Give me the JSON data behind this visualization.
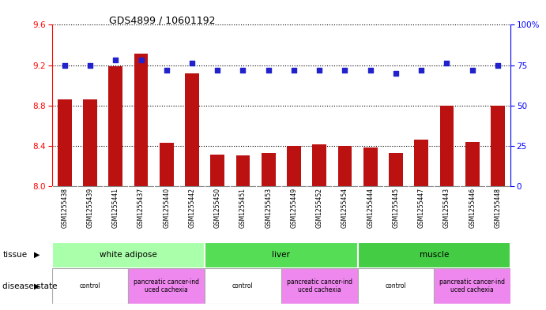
{
  "title": "GDS4899 / 10601192",
  "samples": [
    "GSM1255438",
    "GSM1255439",
    "GSM1255441",
    "GSM1255437",
    "GSM1255440",
    "GSM1255442",
    "GSM1255450",
    "GSM1255451",
    "GSM1255453",
    "GSM1255449",
    "GSM1255452",
    "GSM1255454",
    "GSM1255444",
    "GSM1255445",
    "GSM1255447",
    "GSM1255443",
    "GSM1255446",
    "GSM1255448"
  ],
  "transformed_count": [
    8.86,
    8.86,
    9.19,
    9.31,
    8.43,
    9.12,
    8.31,
    8.3,
    8.33,
    8.4,
    8.41,
    8.4,
    8.38,
    8.33,
    8.46,
    8.8,
    8.44,
    8.8
  ],
  "percentile_rank": [
    75,
    75,
    78,
    78,
    72,
    76,
    72,
    72,
    72,
    72,
    72,
    72,
    72,
    70,
    72,
    76,
    72,
    75
  ],
  "ylim_left": [
    8.0,
    9.6
  ],
  "ylim_right": [
    0,
    100
  ],
  "yticks_left": [
    8.0,
    8.4,
    8.8,
    9.2,
    9.6
  ],
  "yticks_right": [
    0,
    25,
    50,
    75,
    100
  ],
  "bar_color": "#bb1111",
  "dot_color": "#2222cc",
  "tissue_groups": [
    {
      "label": "white adipose",
      "start": 0,
      "end": 6,
      "color": "#99ee99"
    },
    {
      "label": "liver",
      "start": 6,
      "end": 12,
      "color": "#55dd55"
    },
    {
      "label": "muscle",
      "start": 12,
      "end": 18,
      "color": "#44cc44"
    }
  ],
  "disease_groups": [
    {
      "label": "control",
      "start": 0,
      "end": 3,
      "is_cancer": false
    },
    {
      "label": "pancreatic cancer-ind\nuced cachexia",
      "start": 3,
      "end": 6,
      "is_cancer": true
    },
    {
      "label": "control",
      "start": 6,
      "end": 9,
      "is_cancer": false
    },
    {
      "label": "pancreatic cancer-ind\nuced cachexia",
      "start": 9,
      "end": 12,
      "is_cancer": true
    },
    {
      "label": "control",
      "start": 12,
      "end": 15,
      "is_cancer": false
    },
    {
      "label": "pancreatic cancer-ind\nuced cachexia",
      "start": 15,
      "end": 18,
      "is_cancer": true
    }
  ],
  "control_color": "#ffffff",
  "cancer_color": "#ee88ee",
  "tissue_border_color": "#ffffff",
  "sample_label_bg": "#cccccc",
  "background_color": "#ffffff",
  "bar_width": 0.55
}
